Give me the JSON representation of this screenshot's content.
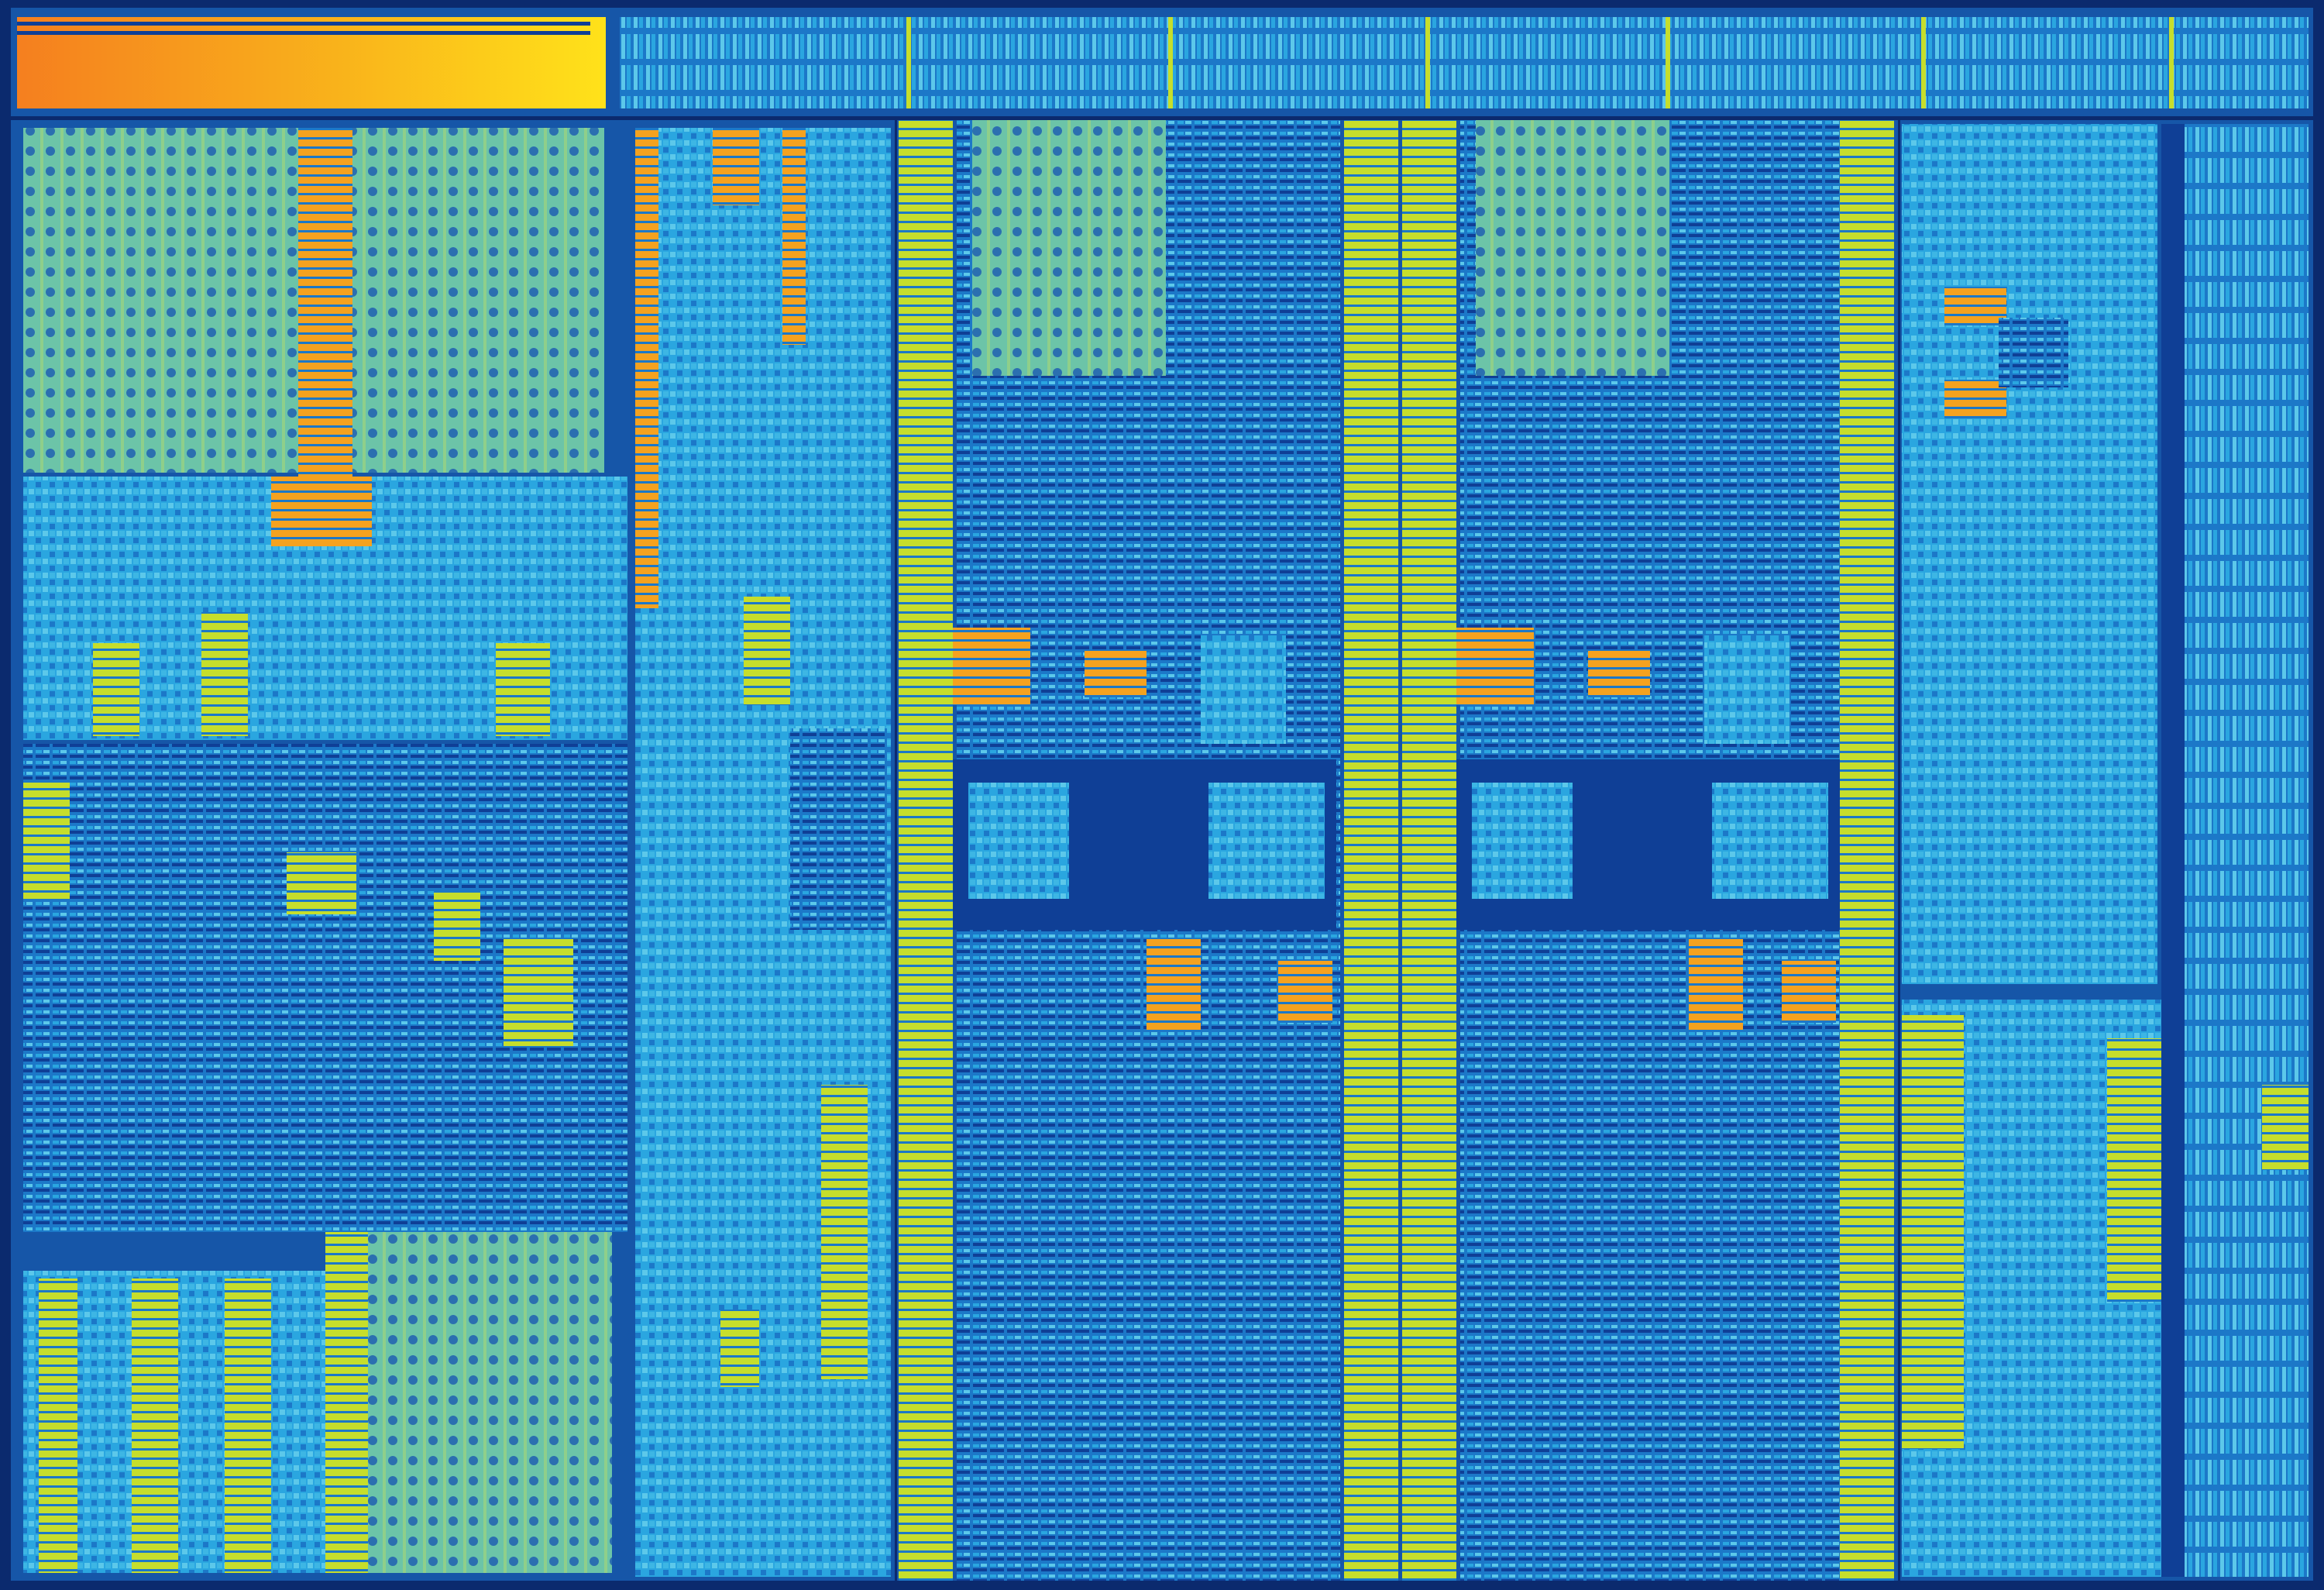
{
  "image": {
    "kind": "processor-die-shot"
  },
  "palette": {
    "background": "#0b2a6e",
    "die_border": "#1a56b8",
    "deep_blue": "#0f3f96",
    "mid_blue": "#1c78c8",
    "cyan": "#2aa6e0",
    "light_cyan": "#5cc8ea",
    "teal_green": "#6cc4a8",
    "green_tint": "#8fcf8a",
    "yellow": "#d9e02a",
    "lime": "#c6de2c",
    "orange": "#f5a21f",
    "gold": "#ffd21a"
  },
  "regions": [
    "orange-gradient-banner",
    "top-io-strip",
    "upper-left-memory-blocks",
    "left-logic-area",
    "lower-left-memory-blocks",
    "middle-left-logic-column",
    "cache-column-1",
    "core-block-1",
    "cache-column-2",
    "cache-column-3",
    "core-block-2",
    "cache-column-4",
    "right-upper-block",
    "right-lower-block",
    "far-right-io-strip"
  ]
}
